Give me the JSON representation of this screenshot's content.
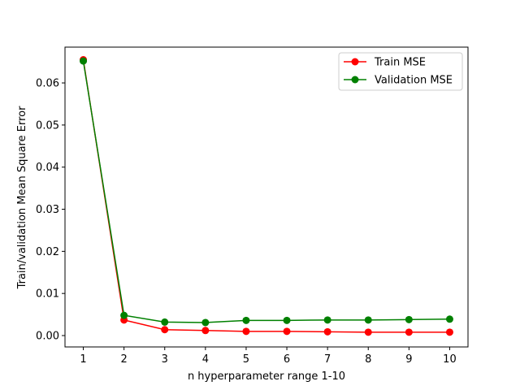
{
  "chart_data": {
    "type": "line",
    "title": "",
    "xlabel": "n hyperparameter range 1-10",
    "ylabel": "Train/validation  Mean Square Error",
    "x": [
      1,
      2,
      3,
      4,
      5,
      6,
      7,
      8,
      9,
      10
    ],
    "xlim": [
      0.55,
      10.45
    ],
    "ylim": [
      -0.0027,
      0.0685
    ],
    "xticks": [
      1,
      2,
      3,
      4,
      5,
      6,
      7,
      8,
      9,
      10
    ],
    "yticks": [
      0.0,
      0.01,
      0.02,
      0.03,
      0.04,
      0.05,
      0.06
    ],
    "ytick_labels": [
      "0.00",
      "0.01",
      "0.02",
      "0.03",
      "0.04",
      "0.05",
      "0.06"
    ],
    "grid": false,
    "legend_position": "top-right",
    "series": [
      {
        "name": "Train MSE",
        "color": "#ff0000",
        "marker": "circle",
        "values": [
          0.0655,
          0.0037,
          0.0014,
          0.0012,
          0.001,
          0.001,
          0.0009,
          0.0008,
          0.0008,
          0.0008
        ]
      },
      {
        "name": "Validation MSE",
        "color": "#008000",
        "marker": "circle",
        "values": [
          0.0652,
          0.0048,
          0.0032,
          0.0031,
          0.0036,
          0.0036,
          0.0037,
          0.0037,
          0.0038,
          0.0039
        ]
      }
    ]
  }
}
